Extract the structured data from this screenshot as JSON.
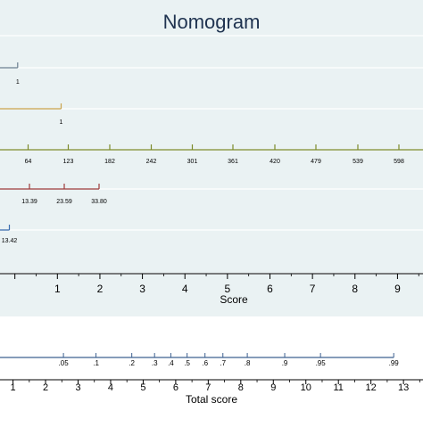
{
  "chart_data": {
    "type": "nomogram",
    "title": "Nomogram",
    "grid": true,
    "predictors": [
      {
        "color": "#6b7f90",
        "segments": [
          [
            0.0,
            19.8
          ]
        ],
        "ticks": [
          {
            "value": 19.8,
            "label": "1"
          }
        ]
      },
      {
        "color": "#c9a24b",
        "segments": [
          [
            0.0,
            68.5
          ]
        ],
        "ticks": [
          {
            "value": 68.5,
            "label": "1"
          }
        ]
      },
      {
        "color": "#7c8a2a",
        "segments": [
          [
            0.0,
            474.0
          ]
        ],
        "ticks": [
          {
            "value": 31.5,
            "label": "64"
          },
          {
            "value": 76.5,
            "label": "123"
          },
          {
            "value": 123.0,
            "label": "182"
          },
          {
            "value": 169.5,
            "label": "242"
          },
          {
            "value": 215.5,
            "label": "301"
          },
          {
            "value": 261.0,
            "label": "361"
          },
          {
            "value": 308.0,
            "label": "420"
          },
          {
            "value": 354.0,
            "label": "479"
          },
          {
            "value": 401.0,
            "label": "539"
          },
          {
            "value": 447.0,
            "label": "598"
          }
        ]
      },
      {
        "color": "#9c3a3a",
        "segments": [
          [
            0.0,
            111.0
          ]
        ],
        "ticks": [
          {
            "value": 33.0,
            "label": "13.39"
          },
          {
            "value": 72.0,
            "label": "23.59"
          },
          {
            "value": 111.0,
            "label": "33.80"
          }
        ]
      },
      {
        "color": "#3d6fb0",
        "segments": [
          [
            0.0,
            10.5
          ]
        ],
        "ticks": [
          {
            "value": 10.5,
            "label": "13.42"
          }
        ]
      }
    ],
    "score_axis": {
      "label": "Score",
      "ticks": [
        1,
        2,
        3,
        4,
        5,
        6,
        7,
        8,
        9
      ],
      "domain": [
        -0.35,
        9.6
      ]
    },
    "probability": {
      "color": "#3d6090",
      "end_total": 12.7,
      "ticks": [
        {
          "label": ".05",
          "total": 2.55
        },
        {
          "label": ".1",
          "total": 3.55
        },
        {
          "label": ".2",
          "total": 4.65
        },
        {
          "label": ".3",
          "total": 5.35
        },
        {
          "label": ".4",
          "total": 5.85
        },
        {
          "label": ".5",
          "total": 6.35
        },
        {
          "label": ".6",
          "total": 6.9
        },
        {
          "label": ".7",
          "total": 7.45
        },
        {
          "label": ".8",
          "total": 8.2
        },
        {
          "label": ".9",
          "total": 9.35
        },
        {
          "label": ".95",
          "total": 10.45
        },
        {
          "label": ".99",
          "total": 12.7
        }
      ]
    },
    "total_axis": {
      "label": "Total score",
      "ticks": [
        1,
        2,
        3,
        4,
        5,
        6,
        7,
        8,
        9,
        10,
        11,
        12,
        13
      ],
      "domain": [
        0.6,
        13.6
      ]
    }
  }
}
